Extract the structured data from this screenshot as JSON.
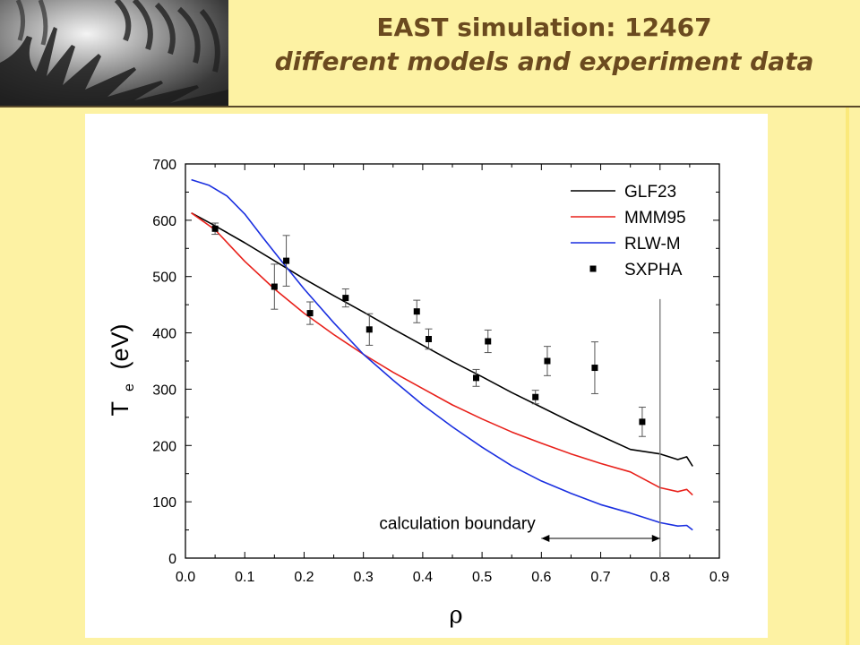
{
  "header": {
    "title_line1": "EAST simulation: 12467",
    "title_line2": "different models and experiment data"
  },
  "chart_data": {
    "type": "line",
    "xlabel": "ρ",
    "ylabel_main": "T",
    "ylabel_sub": "e",
    "ylabel_unit": "(eV)",
    "xlim": [
      0.0,
      0.9
    ],
    "ylim": [
      0,
      700
    ],
    "xticks": [
      0.0,
      0.1,
      0.2,
      0.3,
      0.4,
      0.5,
      0.6,
      0.7,
      0.8,
      0.9
    ],
    "xtick_labels": [
      "0.0",
      "0.1",
      "0.2",
      "0.3",
      "0.4",
      "0.5",
      "0.6",
      "0.7",
      "0.8",
      "0.9"
    ],
    "yticks": [
      0,
      100,
      200,
      300,
      400,
      500,
      600,
      700
    ],
    "ytick_labels": [
      "0",
      "100",
      "200",
      "300",
      "400",
      "500",
      "600",
      "700"
    ],
    "grid": false,
    "legend_position": "top-right",
    "series": [
      {
        "name": "GLF23",
        "color": "#000000",
        "kind": "line",
        "x": [
          0.01,
          0.05,
          0.1,
          0.15,
          0.2,
          0.25,
          0.3,
          0.35,
          0.4,
          0.45,
          0.5,
          0.55,
          0.6,
          0.65,
          0.7,
          0.75,
          0.8,
          0.83,
          0.845,
          0.855
        ],
        "y": [
          613,
          590,
          560,
          528,
          496,
          466,
          437,
          407,
          378,
          349,
          322,
          294,
          268,
          242,
          217,
          193,
          185,
          175,
          180,
          163
        ]
      },
      {
        "name": "MMM95",
        "color": "#e8201a",
        "kind": "line",
        "x": [
          0.01,
          0.05,
          0.1,
          0.15,
          0.2,
          0.25,
          0.3,
          0.35,
          0.4,
          0.45,
          0.5,
          0.55,
          0.6,
          0.65,
          0.7,
          0.75,
          0.8,
          0.83,
          0.845,
          0.855
        ],
        "y": [
          613,
          583,
          527,
          478,
          435,
          397,
          362,
          330,
          301,
          272,
          247,
          224,
          204,
          185,
          168,
          153,
          125,
          118,
          122,
          112
        ]
      },
      {
        "name": "RLW-M",
        "color": "#1a2fe0",
        "kind": "line",
        "x": [
          0.01,
          0.04,
          0.07,
          0.1,
          0.13,
          0.16,
          0.2,
          0.25,
          0.3,
          0.35,
          0.4,
          0.45,
          0.5,
          0.55,
          0.6,
          0.65,
          0.7,
          0.75,
          0.8,
          0.83,
          0.845,
          0.855
        ],
        "y": [
          672,
          662,
          643,
          611,
          570,
          530,
          478,
          418,
          362,
          316,
          272,
          233,
          197,
          164,
          137,
          115,
          95,
          80,
          63,
          57,
          58,
          50
        ]
      },
      {
        "name": "SXPHA",
        "color": "#000000",
        "kind": "points",
        "x": [
          0.05,
          0.15,
          0.17,
          0.21,
          0.27,
          0.31,
          0.39,
          0.41,
          0.49,
          0.51,
          0.59,
          0.61,
          0.69,
          0.77
        ],
        "y": [
          585,
          482,
          528,
          435,
          462,
          406,
          438,
          389,
          320,
          385,
          286,
          350,
          338,
          242
        ],
        "yerr": [
          10,
          40,
          45,
          20,
          16,
          28,
          20,
          18,
          15,
          20,
          12,
          26,
          46,
          26
        ]
      }
    ],
    "annotations": {
      "boundary_label": "calculation boundary",
      "boundary_x": 0.8,
      "arrow_from_x": 0.6,
      "arrow_to_x": 0.8,
      "arrow_y": 35
    }
  }
}
